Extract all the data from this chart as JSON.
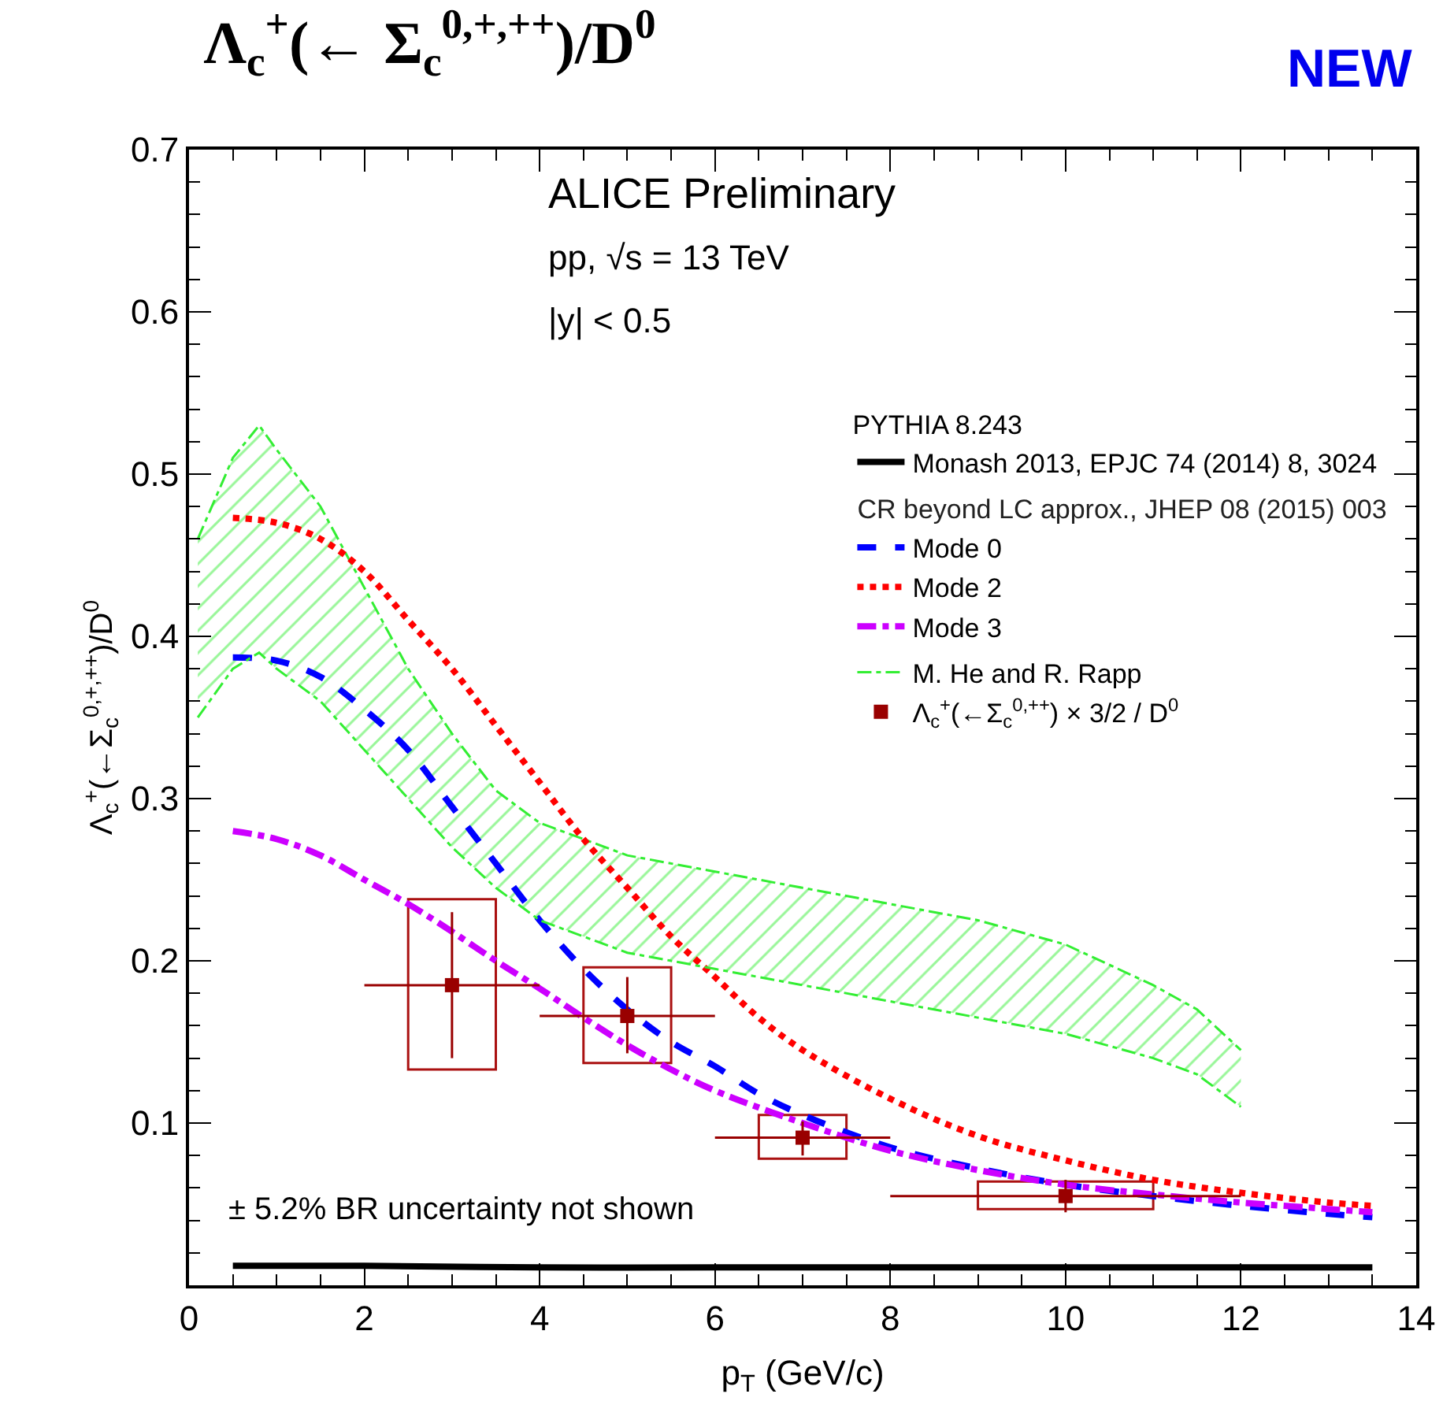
{
  "chart_data": {
    "type": "line",
    "title": "Λ$_{c}$$^{+}$(← Σ$_{c}$$^{0,+,++}$)/D$^{0}$",
    "xlabel": "p$_{T}$ (GeV/c)",
    "ylabel": "Λ$_{c}$$^{+}$(←Σ$_{c}$$^{0,+,++}$)/D$^{0}$",
    "xlim": [
      0,
      14
    ],
    "xticks": [
      0,
      2,
      4,
      6,
      8,
      10,
      12,
      14
    ],
    "ylim": [
      0,
      0.7
    ],
    "yticks": [
      {
        "value": 0,
        "label": null
      },
      0.1,
      0.2,
      0.3,
      0.4,
      0.5,
      0.6,
      0.7
    ],
    "grid": false,
    "legend": "top right",
    "legend_title": "PYTHIA 8.243",
    "annotations": [
      "NEW",
      "ALICE Preliminary",
      "pp, √s = 13 TeV",
      "|y| < 0.5",
      "± 5.2% BR uncertainty not shown",
      "CR beyond LC approx., JHEP 08 (2015) 003"
    ],
    "series": [
      {
        "name": "Monash 2013, EPJC 74 (2014) 8, 3024",
        "color": "#000000",
        "line_style": "solid",
        "marker": "none",
        "x": [
          0.5,
          2,
          4,
          6,
          8,
          10,
          12,
          13.5
        ],
        "values": [
          0.012,
          0.012,
          0.011,
          0.011,
          0.011,
          0.011,
          0.011,
          0.011
        ]
      },
      {
        "name": "Mode 0",
        "color": "#0000ff",
        "line_style": "dashed",
        "marker": "none",
        "x": [
          0.5,
          1,
          1.5,
          2,
          2.5,
          3,
          3.5,
          4,
          4.5,
          5,
          5.5,
          6,
          6.5,
          7,
          8,
          9,
          10,
          11,
          12,
          13,
          13.5
        ],
        "values": [
          0.387,
          0.385,
          0.375,
          0.355,
          0.33,
          0.295,
          0.26,
          0.225,
          0.195,
          0.17,
          0.15,
          0.135,
          0.118,
          0.105,
          0.085,
          0.072,
          0.062,
          0.055,
          0.049,
          0.044,
          0.042
        ]
      },
      {
        "name": "Mode 2",
        "color": "#ff0000",
        "line_style": "dotted",
        "marker": "none",
        "x": [
          0.5,
          1,
          1.5,
          2,
          2.5,
          3,
          3.5,
          4,
          4.5,
          5,
          5.5,
          6,
          6.5,
          7,
          8,
          9,
          10,
          11,
          12,
          13,
          13.5
        ],
        "values": [
          0.473,
          0.47,
          0.46,
          0.44,
          0.41,
          0.38,
          0.345,
          0.31,
          0.275,
          0.245,
          0.215,
          0.19,
          0.165,
          0.145,
          0.115,
          0.092,
          0.077,
          0.065,
          0.057,
          0.051,
          0.049
        ]
      },
      {
        "name": "Mode 3",
        "color": "#cc00ff",
        "line_style": "dashdot",
        "marker": "none",
        "x": [
          0.5,
          1,
          1.5,
          2,
          2.5,
          3,
          3.5,
          4,
          4.5,
          5,
          5.5,
          6,
          7,
          8,
          9,
          10,
          11,
          12,
          13,
          13.5
        ],
        "values": [
          0.28,
          0.275,
          0.265,
          0.25,
          0.235,
          0.218,
          0.2,
          0.183,
          0.165,
          0.148,
          0.133,
          0.12,
          0.1,
          0.083,
          0.071,
          0.062,
          0.056,
          0.051,
          0.047,
          0.045
        ]
      },
      {
        "type": "line",
        "name": "M. He and R. Rapp",
        "color": "#33ee33",
        "line_style": "dashdot",
        "x": [
          0.1,
          0.5,
          0.8,
          1,
          1.5,
          2,
          2.5,
          3,
          3.5,
          4,
          5,
          6,
          7,
          8,
          9,
          10,
          11,
          11.5,
          12
        ],
        "values": [
          0.46,
          0.51,
          0.53,
          0.515,
          0.48,
          0.43,
          0.38,
          0.34,
          0.305,
          0.285,
          0.265,
          0.255,
          0.245,
          0.235,
          0.225,
          0.21,
          0.185,
          0.17,
          0.145
        ],
        "lower": [
          0.35,
          0.38,
          0.39,
          0.38,
          0.36,
          0.33,
          0.3,
          0.27,
          0.245,
          0.225,
          0.205,
          0.195,
          0.185,
          0.175,
          0.165,
          0.155,
          0.14,
          0.13,
          0.11
        ],
        "upper": [
          0.46,
          0.51,
          0.53,
          0.515,
          0.48,
          0.43,
          0.38,
          0.34,
          0.305,
          0.285,
          0.265,
          0.255,
          0.245,
          0.235,
          0.225,
          0.21,
          0.185,
          0.17,
          0.145
        ]
      },
      {
        "type": "line",
        "color": "#33ee33",
        "line_style": "dashdot",
        "x": [
          0.1,
          0.5,
          0.8,
          1,
          1.5,
          2,
          2.5,
          3,
          3.5,
          4,
          5,
          6,
          7,
          8,
          9,
          10,
          11,
          11.5,
          12
        ],
        "values": [
          0.35,
          0.38,
          0.39,
          0.38,
          0.36,
          0.33,
          0.3,
          0.27,
          0.245,
          0.225,
          0.205,
          0.195,
          0.185,
          0.175,
          0.165,
          0.155,
          0.14,
          0.13,
          0.11
        ]
      },
      {
        "type": "bar",
        "color": "#aa1111",
        "x": [
          3,
          5,
          7,
          10
        ],
        "base": [
          0.133,
          0.137,
          0.078,
          0.047
        ],
        "values": [
          0.105,
          0.059,
          0.027,
          0.017
        ]
      },
      {
        "type": "scatter",
        "name": "Λ$_{c}$$^{+}$(←Σ$_{c}$$^{0,++}$) × 3/2 / D$^{0}$",
        "color": "#990000",
        "marker": "square",
        "x": [
          3,
          5,
          7,
          10
        ],
        "values": [
          0.185,
          0.166,
          0.091,
          0.055
        ],
        "errors": [
          [
            0.14,
            0.23
          ],
          [
            0.143,
            0.19
          ],
          [
            0.08,
            0.101
          ],
          [
            0.045,
            0.065
          ]
        ],
        "xerrors": [
          [
            2,
            4
          ],
          [
            4,
            6
          ],
          [
            6,
            8
          ],
          [
            8,
            12
          ]
        ]
      }
    ]
  }
}
